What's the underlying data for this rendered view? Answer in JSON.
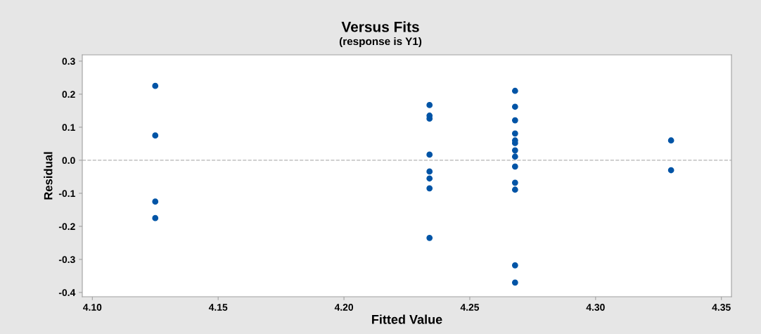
{
  "chart_data": {
    "type": "scatter",
    "title": "Versus Fits",
    "subtitle": "(response is Y1)",
    "xlabel": "Fitted Value",
    "ylabel": "Residual",
    "series": [
      {
        "color": "#0054a6",
        "x": [
          4.125,
          4.125,
          4.125,
          4.125,
          4.234,
          4.234,
          4.234,
          4.234,
          4.234,
          4.234,
          4.234,
          4.234,
          4.268,
          4.268,
          4.268,
          4.268,
          4.268,
          4.268,
          4.268,
          4.268,
          4.268,
          4.268,
          4.268,
          4.268,
          4.268,
          4.33,
          4.33
        ],
        "values": [
          0.225,
          0.075,
          -0.125,
          -0.175,
          0.167,
          0.135,
          0.126,
          0.017,
          -0.034,
          -0.055,
          -0.085,
          -0.235,
          0.21,
          0.162,
          0.121,
          0.081,
          0.06,
          0.052,
          0.03,
          0.011,
          -0.019,
          -0.068,
          -0.089,
          -0.318,
          -0.37,
          0.06,
          -0.03
        ]
      }
    ],
    "xlim": [
      4.096,
      4.354
    ],
    "xticks": [
      {
        "value": 4.1,
        "label": "4.10"
      },
      4.15,
      {
        "value": 4.2,
        "label": "4.20"
      },
      4.25,
      {
        "value": 4.3,
        "label": "4.30"
      },
      4.35
    ],
    "ylim": [
      -0.413,
      0.319
    ],
    "yticks": [
      {
        "value": -0.4,
        "label": "-0.4"
      },
      {
        "value": -0.3,
        "label": "-0.3"
      },
      {
        "value": -0.2,
        "label": "-0.2"
      },
      {
        "value": -0.1,
        "label": "-0.1"
      },
      {
        "value": 0.0,
        "label": "0.0"
      },
      0.1,
      0.2,
      0.3
    ],
    "ref_lines": [
      {
        "axis": "y",
        "value": 0,
        "color": "#b4b4b4",
        "line_style": "dashed"
      }
    ],
    "marker": "circle",
    "grid": false,
    "legend": false
  }
}
